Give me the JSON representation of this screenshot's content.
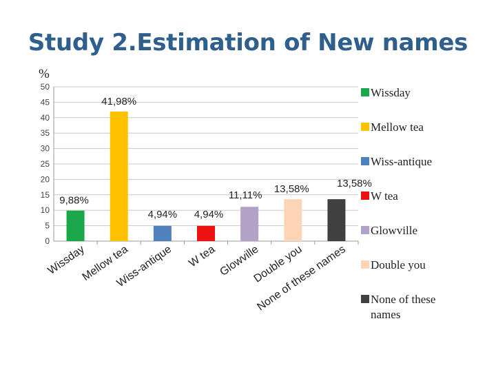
{
  "slide": {
    "title": "Study 2.Estimation of New names"
  },
  "chart_data": {
    "type": "bar",
    "title": "",
    "ylabel": "%",
    "xlabel": "",
    "ylim": [
      0,
      50
    ],
    "yticks": [
      0,
      5,
      10,
      15,
      20,
      25,
      30,
      35,
      40,
      45,
      50
    ],
    "grid": true,
    "legend_position": "right",
    "categories": [
      "Wissday",
      "Mellow tea",
      "Wiss-antique",
      "W tea",
      "Glowville",
      "Double you",
      "None of these names"
    ],
    "values": [
      9.88,
      41.98,
      4.94,
      4.94,
      11.11,
      13.58,
      13.58
    ],
    "data_labels": [
      "9,88%",
      "41,98%",
      "4,94%",
      "4,94%",
      "11,11%",
      "13,58%",
      "13,58%"
    ],
    "colors": [
      "#1aa84a",
      "#ffc000",
      "#4f81bd",
      "#ee1111",
      "#b3a2c7",
      "#fbd5b5",
      "#404040"
    ],
    "legend": [
      "Wissday",
      "Mellow tea",
      "Wiss-antique",
      "W tea",
      "Glowville",
      "Double you",
      "None of these names"
    ]
  }
}
